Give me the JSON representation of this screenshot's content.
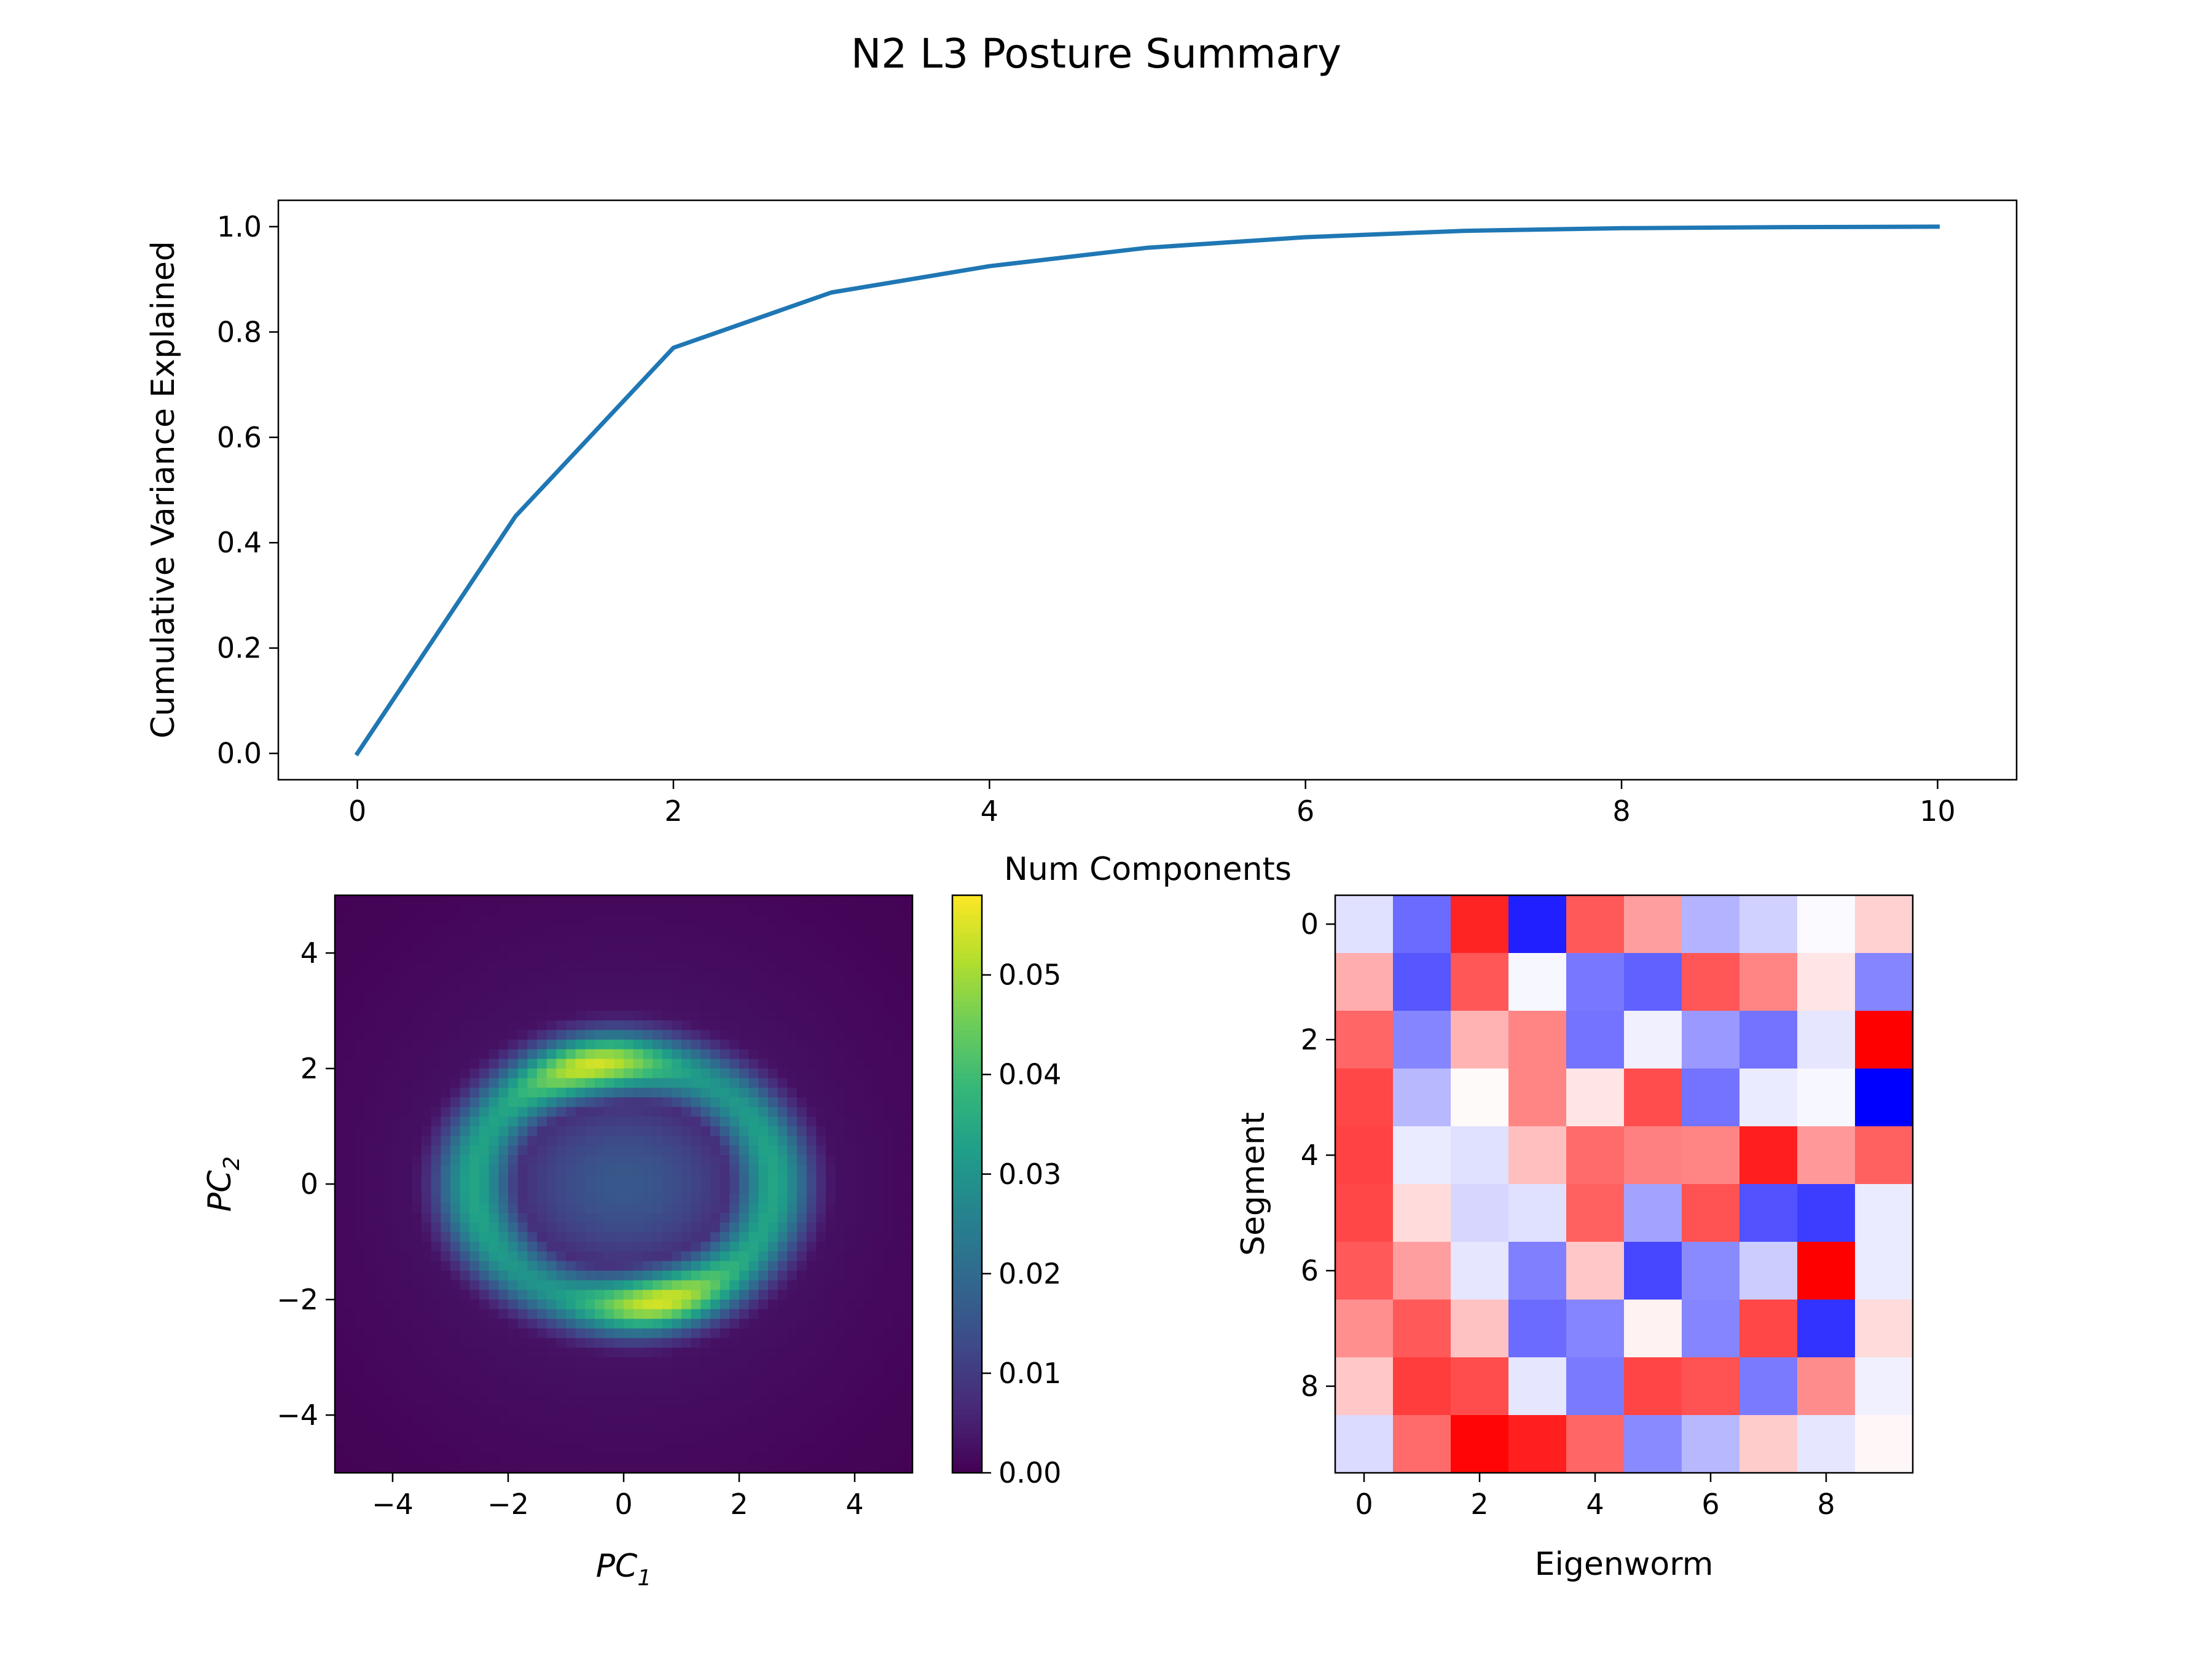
{
  "suptitle": "N2 L3 Posture Summary",
  "chart_data": [
    {
      "type": "line",
      "xlabel": "Num Components",
      "ylabel": "Cumulative Variance Explained",
      "xlim": [
        -0.5,
        10.5
      ],
      "ylim": [
        -0.05,
        1.05
      ],
      "xticks": [
        "0",
        "2",
        "4",
        "6",
        "8",
        "10"
      ],
      "yticks": [
        "0.0",
        "0.2",
        "0.4",
        "0.6",
        "0.8",
        "1.0"
      ],
      "line_color": "#1f77b4",
      "series": [
        {
          "x": [
            0,
            1,
            2,
            3,
            4,
            5,
            6,
            7,
            8,
            9,
            10
          ],
          "values": [
            0.0,
            0.45,
            0.77,
            0.875,
            0.925,
            0.96,
            0.98,
            0.992,
            0.997,
            0.999,
            1.0
          ]
        }
      ]
    },
    {
      "type": "heatmap",
      "xlabel": "PC1",
      "ylabel": "PC2",
      "xlim": [
        -5,
        5
      ],
      "ylim": [
        -5,
        5
      ],
      "xticks": [
        "−4",
        "−2",
        "0",
        "2",
        "4"
      ],
      "yticks": [
        "−4",
        "−2",
        "0",
        "2",
        "4"
      ],
      "colormap": "viridis",
      "colorbar_range": [
        0,
        0.058
      ],
      "colorbar_ticks": [
        "0.00",
        "0.01",
        "0.02",
        "0.03",
        "0.04",
        "0.05"
      ],
      "density": {
        "shape": "ring",
        "center": [
          0,
          0
        ],
        "ring_radius_x": 2.6,
        "ring_radius_y": 2.1,
        "ring_width": 0.42,
        "peak_value": 0.058,
        "peak_centers": [
          [
            -0.5,
            2.1
          ],
          [
            0.6,
            -2.05
          ]
        ],
        "center_value": 0.012
      }
    },
    {
      "type": "heatmap",
      "xlabel": "Eigenworm",
      "ylabel": "Segment",
      "colormap": "bwr",
      "vmin": -1,
      "vmax": 1,
      "xticks": [
        "0",
        "2",
        "4",
        "6",
        "8"
      ],
      "yticks": [
        "0",
        "2",
        "4",
        "6",
        "8"
      ],
      "values": [
        [
          -0.12,
          -0.58,
          0.86,
          -0.88,
          0.65,
          0.38,
          -0.3,
          -0.18,
          -0.02,
          0.18
        ],
        [
          0.32,
          -0.66,
          0.66,
          -0.03,
          -0.53,
          -0.62,
          0.66,
          0.48,
          0.1,
          -0.48
        ],
        [
          0.6,
          -0.48,
          0.3,
          0.48,
          -0.55,
          -0.06,
          -0.4,
          -0.55,
          -0.1,
          1.0
        ],
        [
          0.72,
          -0.28,
          0.02,
          0.48,
          0.1,
          0.7,
          -0.55,
          -0.08,
          -0.03,
          -1.0
        ],
        [
          0.74,
          -0.08,
          -0.12,
          0.25,
          0.58,
          0.5,
          0.48,
          0.88,
          0.4,
          0.62
        ],
        [
          0.72,
          0.14,
          -0.16,
          -0.12,
          0.62,
          -0.36,
          0.68,
          -0.68,
          -0.76,
          -0.08
        ],
        [
          0.65,
          0.38,
          -0.1,
          -0.5,
          0.22,
          -0.72,
          -0.46,
          -0.2,
          1.0,
          -0.08
        ],
        [
          0.44,
          0.65,
          0.24,
          -0.58,
          -0.48,
          0.05,
          -0.48,
          0.72,
          -0.8,
          0.14
        ],
        [
          0.22,
          0.76,
          0.7,
          -0.1,
          -0.52,
          0.73,
          0.68,
          -0.52,
          0.45,
          -0.06
        ],
        [
          -0.14,
          0.58,
          0.98,
          0.88,
          0.6,
          -0.46,
          -0.28,
          0.2,
          -0.1,
          0.03
        ]
      ]
    }
  ]
}
